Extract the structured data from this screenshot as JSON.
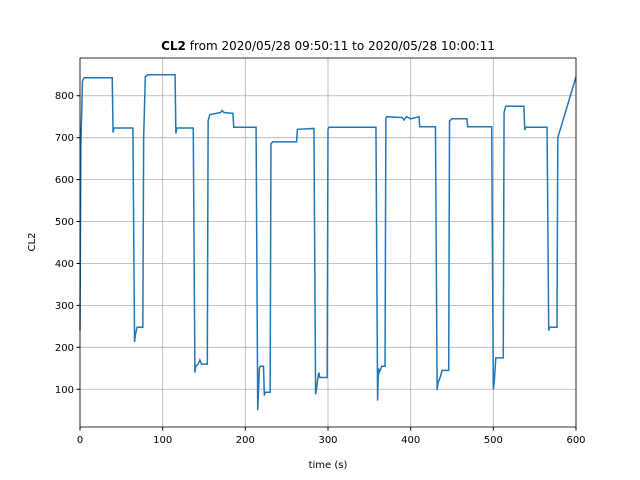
{
  "chart_data": {
    "type": "line",
    "title": [
      "CL2",
      "from 2020/05/28 09:50:11 to 2020/05/28 10:00:11"
    ],
    "xlabel": "time (s)",
    "ylabel": "CL2",
    "xlim": [
      0,
      600
    ],
    "xticks": [
      0,
      100,
      200,
      300,
      400,
      500,
      600
    ],
    "ylim": [
      10,
      890
    ],
    "yticks": [
      100,
      200,
      300,
      400,
      500,
      600,
      700,
      800
    ],
    "grid": true,
    "series": [
      {
        "name": "CL2",
        "color": "#1f77b4",
        "x": [
          0,
          1,
          3,
          5,
          39,
          40,
          41,
          64,
          66,
          67,
          69,
          76,
          77,
          79,
          82,
          115,
          116,
          117,
          137,
          139,
          140,
          143,
          145,
          147,
          154,
          155,
          157,
          170,
          172,
          174,
          185,
          186,
          213,
          215,
          217,
          218,
          222,
          223,
          224,
          230,
          231,
          233,
          262,
          263,
          283,
          285,
          286,
          288,
          289,
          290,
          299,
          300,
          301,
          358,
          360,
          361,
          362,
          365,
          369,
          370,
          371,
          390,
          392,
          395,
          400,
          410,
          411,
          430,
          432,
          433,
          436,
          438,
          446,
          447,
          450,
          468,
          469,
          498,
          500,
          501,
          503,
          512,
          513,
          515,
          537,
          538,
          539,
          565,
          567,
          568,
          577,
          578,
          600
        ],
        "values": [
          240,
          680,
          835,
          843,
          843,
          712,
          723,
          723,
          213,
          230,
          248,
          248,
          700,
          845,
          850,
          850,
          710,
          723,
          723,
          140,
          155,
          160,
          170,
          160,
          160,
          740,
          755,
          760,
          765,
          760,
          758,
          725,
          725,
          50,
          150,
          155,
          155,
          85,
          93,
          93,
          685,
          690,
          690,
          720,
          722,
          88,
          100,
          130,
          140,
          128,
          128,
          720,
          725,
          725,
          73,
          150,
          140,
          155,
          155,
          745,
          750,
          748,
          742,
          750,
          745,
          750,
          726,
          726,
          98,
          115,
          130,
          145,
          145,
          740,
          745,
          745,
          726,
          726,
          100,
          115,
          175,
          175,
          760,
          775,
          775,
          718,
          725,
          725,
          240,
          248,
          248,
          700,
          845
        ]
      }
    ]
  }
}
